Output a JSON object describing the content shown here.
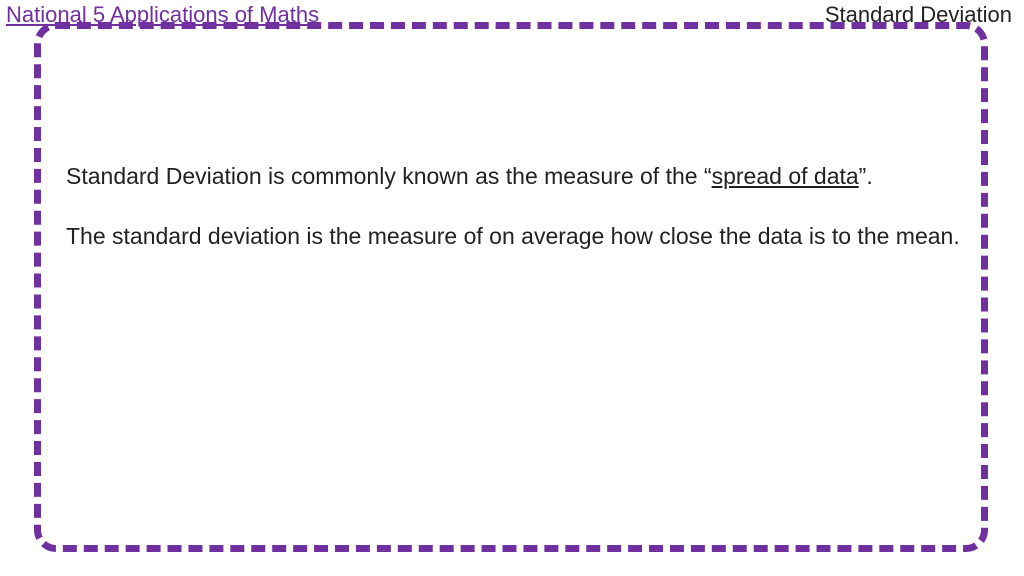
{
  "header": {
    "left": "National 5 Applications of Maths",
    "right": "Standard Deviation"
  },
  "body": {
    "p1_prefix": "Standard Deviation is commonly known as the measure of the “",
    "p1_underlined": "spread of data",
    "p1_suffix": "”.",
    "p2": "The standard deviation is the measure of on average how close the data is to the mean."
  },
  "style": {
    "accent_color": "#7030a0",
    "text_color": "#222222",
    "background_color": "#ffffff",
    "header_fontsize": 22,
    "body_fontsize": 23,
    "dash_border_width": 7,
    "dash_border_radius": 22
  }
}
